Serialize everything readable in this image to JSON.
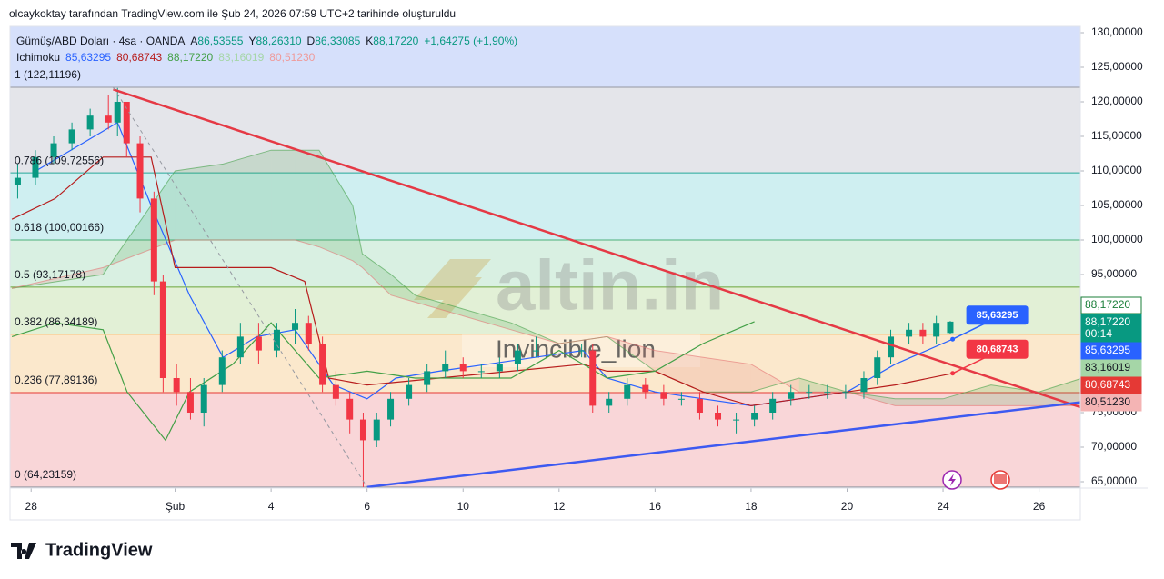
{
  "header": "olcaykoktay tarafından TradingView.com ile Şub 24, 2026 07:59 UTC+2 tarihinde oluşturuldu",
  "chart_data": {
    "type": "candlestick",
    "legend": {
      "symbol": "Gümüş/ABD Doları · 4sa · OANDA",
      "ohlc": [
        {
          "key": "A",
          "label": "86,53555"
        },
        {
          "key": "Y",
          "label": "88,26310"
        },
        {
          "key": "D",
          "label": "86,33085"
        },
        {
          "key": "K",
          "label": "88,17220"
        }
      ],
      "change": "+1,64275 (+1,90%)",
      "indicator": "Ichimoku",
      "indicator_values": [
        {
          "label": "85,63295",
          "color": "#2962ff"
        },
        {
          "label": "80,68743",
          "color": "#b71c1c"
        },
        {
          "label": "88,17220",
          "color": "#43a047"
        },
        {
          "label": "83,16019",
          "color": "#a5d6a7"
        },
        {
          "label": "80,51230",
          "color": "#ef9a9a"
        }
      ]
    },
    "xlim": [
      -0.44,
      21.86
    ],
    "ylim": [
      64.08,
      130.92
    ],
    "xticks": [
      {
        "value": 0,
        "label": "28"
      },
      {
        "value": 3,
        "label": "Şub"
      },
      {
        "value": 5,
        "label": "4"
      },
      {
        "value": 7,
        "label": "6"
      },
      {
        "value": 9,
        "label": "10"
      },
      {
        "value": 11,
        "label": "12"
      },
      {
        "value": 13,
        "label": "16"
      },
      {
        "value": 15,
        "label": "18"
      },
      {
        "value": 17,
        "label": "20"
      },
      {
        "value": 19,
        "label": "24"
      },
      {
        "value": 21,
        "label": "26"
      }
    ],
    "yticks": [
      {
        "value": 65,
        "label": "65,00000"
      },
      {
        "value": 70,
        "label": "70,00000"
      },
      {
        "value": 75,
        "label": "75,00000"
      },
      {
        "value": 80,
        "label": "80,00000"
      },
      {
        "value": 85,
        "label": "85,00000"
      },
      {
        "value": 90,
        "label": "90,00000"
      },
      {
        "value": 95,
        "label": "95,00000"
      },
      {
        "value": 100,
        "label": "100,00000"
      },
      {
        "value": 105,
        "label": "105,00000"
      },
      {
        "value": 110,
        "label": "110,00000"
      },
      {
        "value": 115,
        "label": "115,00000"
      },
      {
        "value": 120,
        "label": "120,00000"
      },
      {
        "value": 125,
        "label": "125,00000"
      },
      {
        "value": 130,
        "label": "130,00000"
      }
    ],
    "up_color": "#089981",
    "down_color": "#f23645",
    "fib": {
      "top_color": "#d6e0fb",
      "levels": [
        {
          "label": "1 (122,11196)",
          "price": 122.11196,
          "color": "#9598a1",
          "fill": "#e4e5ea"
        },
        {
          "label": "0.786 (109,72556)",
          "price": 109.72556,
          "color": "#26a69a",
          "fill": "#cfeff1"
        },
        {
          "label": "0.618 (100,00166)",
          "price": 100.00166,
          "color": "#4caf7a",
          "fill": "#d9f0e2"
        },
        {
          "label": "0.5 (93,17178)",
          "price": 93.17178,
          "color": "#6ba539",
          "fill": "#e2f0d6"
        },
        {
          "label": "0.382 (86,34189)",
          "price": 86.34189,
          "color": "#f0a030",
          "fill": "#fbe8cc"
        },
        {
          "label": "0.236 (77,89136)",
          "price": 77.89136,
          "color": "#e53935",
          "fill": "#f9d6d8"
        },
        {
          "label": "0 (64,23159)",
          "price": 64.23159,
          "color": "#9598a1",
          "fill": "#f9d6d8"
        }
      ]
    },
    "x": [
      -0.28,
      0.09,
      0.47,
      0.85,
      1.23,
      1.61,
      1.8,
      1.99,
      2.27,
      2.56,
      2.75,
      3.03,
      3.32,
      3.6,
      3.98,
      4.36,
      4.74,
      5.12,
      5.5,
      5.78,
      6.07,
      6.35,
      6.64,
      6.92,
      7.2,
      7.49,
      7.87,
      8.25,
      8.63,
      9.0,
      9.38,
      9.76,
      10.14,
      10.52,
      11.47,
      11.7,
      12.04,
      12.42,
      12.8,
      13.18,
      13.55,
      13.93,
      14.31,
      14.69,
      15.07,
      15.45,
      15.83,
      16.21,
      16.59,
      16.97,
      17.35,
      17.63,
      17.91,
      18.29,
      18.58,
      18.86,
      19.15
    ],
    "open": [
      108,
      109,
      112,
      114,
      116,
      118,
      117,
      120,
      114,
      106,
      94,
      80,
      78,
      75,
      79,
      83,
      86,
      84,
      87,
      88,
      85,
      79,
      77,
      74,
      71,
      74,
      77,
      79,
      81,
      82,
      81,
      81,
      82,
      84,
      84,
      84,
      76,
      77,
      79,
      78,
      77,
      77,
      75,
      74,
      74,
      75,
      77,
      78,
      78,
      78,
      78,
      80,
      83,
      86,
      87,
      86,
      86.53555
    ],
    "high": [
      111,
      113,
      115,
      117,
      119,
      121,
      122,
      120,
      115,
      107,
      95,
      82,
      80,
      80,
      84,
      88,
      88,
      88,
      90,
      89,
      86,
      81,
      78,
      75,
      75,
      78,
      80,
      82,
      84,
      83,
      82,
      83,
      85,
      86,
      85,
      85,
      78,
      80,
      80,
      79,
      78,
      78,
      76,
      75,
      76,
      78,
      79,
      79,
      79,
      79,
      81,
      84,
      87,
      88,
      88,
      89,
      88.2631
    ],
    "low": [
      106,
      108,
      111,
      113,
      115,
      116,
      115,
      112,
      104,
      92,
      78,
      76,
      74,
      73,
      78,
      82,
      82,
      83,
      85,
      84,
      78,
      76,
      72,
      64.23159,
      70,
      73,
      76,
      78,
      80,
      80,
      80,
      80,
      81,
      83,
      83,
      75,
      75,
      76,
      77,
      76,
      76,
      74,
      73,
      72,
      73,
      74,
      76,
      77,
      77,
      77,
      77,
      79,
      82,
      85,
      85,
      85,
      86.33085
    ],
    "close": [
      109,
      112,
      114,
      116,
      118,
      117,
      120,
      114,
      106,
      94,
      80,
      78,
      75,
      79,
      83,
      86,
      84,
      87,
      88,
      85,
      79,
      77,
      74,
      71,
      74,
      77,
      79,
      81,
      82,
      81,
      81,
      82,
      84,
      84,
      84,
      76,
      77,
      79,
      78,
      77,
      77,
      75,
      74,
      74,
      75,
      77,
      78,
      78,
      78,
      78,
      80,
      83,
      86,
      87,
      86,
      88,
      88.1722
    ],
    "cloud": {
      "x": [
        -0.4,
        1.5,
        3,
        4,
        5,
        5.5,
        6,
        6.7,
        6.9,
        7.5,
        8,
        8.5,
        9,
        10,
        11,
        12,
        13,
        14,
        15,
        16,
        17,
        18,
        19,
        20,
        21,
        21.9
      ],
      "span_a": [
        93,
        95,
        110,
        111,
        113,
        113,
        113,
        105,
        98,
        95,
        92,
        91,
        90,
        88,
        85,
        86,
        81,
        78,
        78,
        80,
        78,
        77,
        77,
        79,
        78,
        80
      ],
      "span_b": [
        93,
        96,
        100,
        100,
        100,
        100,
        99,
        97,
        96,
        92,
        91,
        90,
        89,
        87,
        85,
        86,
        84,
        83,
        82,
        78,
        78,
        76,
        76,
        76,
        76,
        76
      ],
      "color_a": "#43a047",
      "color_b": "#e57373"
    },
    "series": [
      {
        "name": "Tenkan",
        "color": "#2962ff",
        "x": [
          0.1,
          1.8,
          2.5,
          3.3,
          4.0,
          4.7,
          5.5,
          6.3,
          7.0,
          7.6,
          8.5,
          9.5,
          10.5,
          11.5,
          12.0,
          13.0,
          14.0,
          15.0,
          16.0,
          17.0,
          18.0,
          19.2
        ],
        "values": [
          110,
          117,
          105,
          92,
          83,
          86,
          87,
          79,
          77,
          80,
          81,
          82,
          83,
          84,
          80,
          78,
          77,
          76,
          77,
          78,
          82,
          85.63295
        ]
      },
      {
        "name": "Kijun",
        "color": "#b71c1c",
        "x": [
          -0.4,
          0.5,
          1.5,
          2.5,
          3.0,
          4.0,
          5.0,
          5.7,
          6.2,
          7.0,
          8.5,
          10.0,
          11.5,
          12.0,
          13.0,
          14.0,
          15.0,
          16.0,
          17.0,
          18.0,
          19.2
        ],
        "values": [
          103,
          106,
          112,
          112,
          96,
          96,
          96,
          94,
          80,
          79,
          80,
          81,
          82,
          81,
          81,
          78,
          76,
          77,
          78,
          79,
          80.68743
        ]
      },
      {
        "name": "Chikou",
        "color": "#43a047",
        "x": [
          -0.4,
          0.5,
          1.5,
          2.0,
          2.8,
          3.3,
          4.2,
          5.0,
          6.0,
          7.0,
          8.0,
          9.0,
          10.0,
          11.0,
          12.0,
          13.0,
          14.0,
          15.07
        ],
        "values": [
          86,
          88,
          87,
          78,
          71,
          78,
          82,
          88,
          80,
          81,
          80,
          80,
          80,
          84,
          80,
          81,
          85,
          88.1722
        ]
      }
    ],
    "trendlines": [
      {
        "x": [
          1.71,
          21.86
        ],
        "y": [
          121.8,
          75.8
        ],
        "color": "#e53945",
        "width": 2.5,
        "dash": false
      },
      {
        "x": [
          7.0,
          21.86
        ],
        "y": [
          64.23159,
          76.5
        ],
        "color": "#3d5af1",
        "width": 2.5,
        "dash": false
      },
      {
        "x": [
          1.71,
          7.0
        ],
        "y": [
          122.11196,
          64.23159
        ],
        "color": "#9598a1",
        "width": 1,
        "dash": true
      }
    ],
    "callouts": [
      {
        "label": "85,63295",
        "price": 85.63295,
        "x": 19.2,
        "color": "#2962ff"
      },
      {
        "label": "80,68743",
        "price": 80.68743,
        "x": 19.2,
        "color": "#f23645"
      }
    ],
    "price_badges": [
      {
        "label": "88,17220",
        "color": "#ffffff",
        "text": "#1b7f3a",
        "border": "#1b7f3a"
      },
      {
        "label": "88,17220",
        "sub": "00:14",
        "color": "#089981",
        "text": "#ffffff",
        "border": "#089981"
      },
      {
        "label": "85,63295",
        "color": "#2962ff",
        "text": "#ffffff",
        "border": "#2962ff"
      },
      {
        "label": "83,16019",
        "color": "#a5d6a7",
        "text": "#131722",
        "border": "#a5d6a7"
      },
      {
        "label": "80,68743",
        "color": "#e53935",
        "text": "#ffffff",
        "border": "#e53935"
      },
      {
        "label": "80,51230",
        "color": "#f4b4b4",
        "text": "#131722",
        "border": "#f4b4b4"
      }
    ],
    "watermark": [
      "altin.in",
      "Invincible_lion"
    ]
  },
  "footer": "TradingView"
}
